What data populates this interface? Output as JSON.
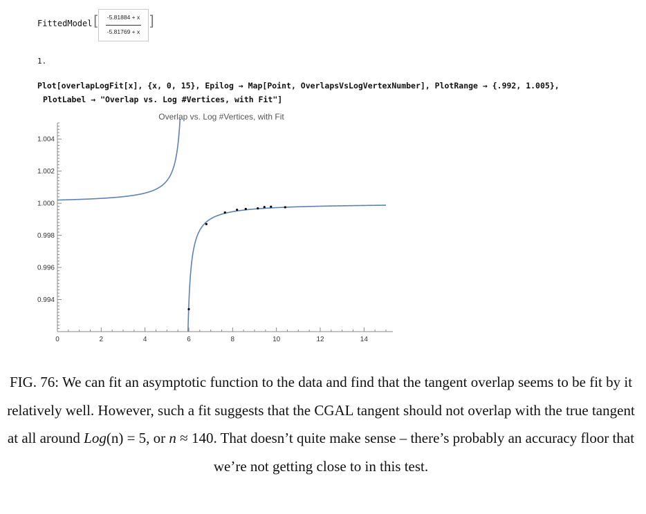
{
  "fitted": {
    "label": "FittedModel",
    "numerator": "-5.81884 + x",
    "denominator": "-5.81769 + x"
  },
  "result": "1.",
  "code": {
    "line1": "Plot[overlapLogFit[x], {x, 0, 15}, Epilog → Map[Point, OverlapsVsLogVertexNumber], PlotRange → {.992, 1.005},",
    "line2": "PlotLabel → \"Overlap vs. Log #Vertices, with Fit\"]"
  },
  "chart_data": {
    "type": "line",
    "title": "Overlap vs. Log #Vertices, with Fit",
    "xlabel": "",
    "ylabel": "",
    "xlim": [
      0,
      15
    ],
    "ylim": [
      0.992,
      1.005
    ],
    "x_ticks": [
      0,
      2,
      4,
      6,
      8,
      10,
      12,
      14
    ],
    "y_ticks": [
      1.004,
      1.002,
      1.0,
      0.998,
      0.996,
      0.994
    ],
    "y_tick_labels": [
      "1.004",
      "1.002",
      "1.000",
      "0.998",
      "0.996",
      "0.994"
    ],
    "fit": {
      "a": -5.81884,
      "b": -5.81769,
      "formula": "(x + a) / (x + b)"
    },
    "points": [
      {
        "x": 6.0,
        "y": 0.9934
      },
      {
        "x": 6.8,
        "y": 0.9987
      },
      {
        "x": 7.65,
        "y": 0.99942
      },
      {
        "x": 8.2,
        "y": 0.99959
      },
      {
        "x": 8.6,
        "y": 0.99964
      },
      {
        "x": 9.15,
        "y": 0.99968
      },
      {
        "x": 9.45,
        "y": 0.99976
      },
      {
        "x": 9.75,
        "y": 0.99978
      },
      {
        "x": 10.4,
        "y": 0.99975
      }
    ],
    "colors": {
      "curve": "#5e81b5",
      "point": "#000000",
      "axis": "#888888"
    },
    "grid": false
  },
  "caption": {
    "text_a": "FIG. 76: We can fit an asymptotic function to the data and find that the tangent overlap seems to be fit by it relatively well. However, such a fit suggests that the CGAL tangent should not overlap with the true tangent at all around ",
    "math_log": "Log",
    "math_n": "(n)",
    "text_b": " = 5, or ",
    "math_n2": "n",
    "text_c": " ≈ 140. That doesn’t quite make sense – there’s probably an accuracy floor that we’re not getting close to in this test."
  }
}
